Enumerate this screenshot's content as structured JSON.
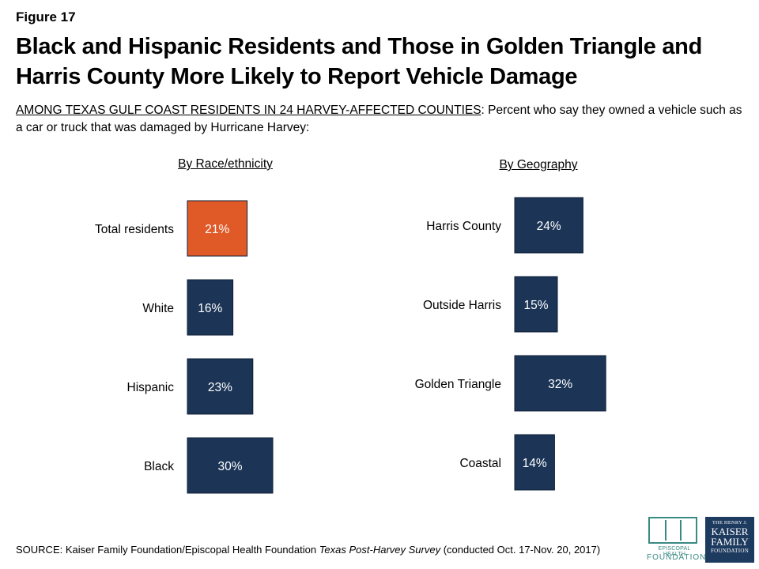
{
  "figure_label": "Figure 17",
  "title": "Black and Hispanic Residents and Those in Golden Triangle and Harris County More Likely to Report Vehicle Damage",
  "subtitle_prefix": "AMONG TEXAS GULF COAST RESIDENTS IN 24 HARVEY-AFFECTED COUNTIES",
  "subtitle_rest": ": Percent who say they owned a vehicle such as a car or truck that was damaged by Hurricane Harvey:",
  "source_prefix": "SOURCE: Kaiser Family Foundation/Episcopal Health Foundation ",
  "source_survey": "Texas Post-Harvey Survey",
  "source_suffix": " (conducted Oct. 17-Nov. 20, 2017)",
  "logos": {
    "ehf_line1": "EPISCOPAL HEALTH",
    "ehf_line2": "FOUNDATION",
    "kff_line1": "THE HENRY J.",
    "kff_line2": "KAISER",
    "kff_line3": "FAMILY",
    "kff_line4": "FOUNDATION"
  },
  "colors": {
    "highlight": "#e05a28",
    "bar": "#1c3557"
  },
  "chart_data": [
    {
      "type": "bar",
      "orientation": "horizontal",
      "title": "By Race/ethnicity",
      "categories": [
        "Total residents",
        "White",
        "Hispanic",
        "Black"
      ],
      "values": [
        21,
        16,
        23,
        30
      ],
      "value_suffix": "%",
      "highlight_index": 0
    },
    {
      "type": "bar",
      "orientation": "horizontal",
      "title": "By Geography",
      "categories": [
        "Harris County",
        "Outside Harris",
        "Golden Triangle",
        "Coastal"
      ],
      "values": [
        24,
        15,
        32,
        14
      ],
      "value_suffix": "%",
      "highlight_index": -1
    }
  ]
}
